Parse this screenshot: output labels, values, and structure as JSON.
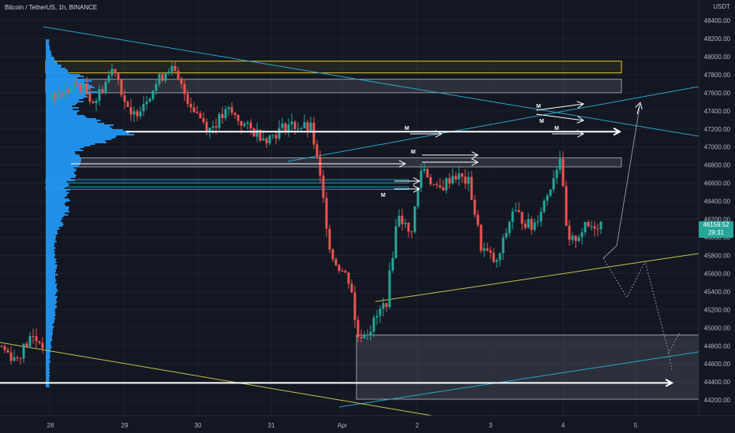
{
  "symbol": {
    "title": "Bitcoin / TetherUS, 1h, BINANCE",
    "currency": "USDT"
  },
  "last_price": {
    "value": "46159.52",
    "countdown": "29:31",
    "color": "#26a69a"
  },
  "colors": {
    "up": "#26a69a",
    "down": "#ef5350",
    "volume_profile": "#2196f3",
    "trend_cyan": "#26a6c9",
    "trend_yellow": "#c8c14a",
    "zone_yellow": "#e6c829",
    "arrow": "#ffffff",
    "projection": "#8a8f98"
  },
  "chart_data": {
    "type": "candlestick",
    "y_axis": {
      "position": "right",
      "range": [
        44100,
        48400
      ],
      "ticks": [
        "48400.00",
        "48200.00",
        "48000.00",
        "47800.00",
        "47600.00",
        "47400.00",
        "47200.00",
        "47000.00",
        "46800.00",
        "46600.00",
        "46400.00",
        "46200.00",
        "46000.00",
        "45800.00",
        "45600.00",
        "45400.00",
        "45200.00",
        "45000.00",
        "44800.00",
        "44600.00",
        "44400.00",
        "44200.00"
      ]
    },
    "x_axis": {
      "labels": [
        "28",
        "29",
        "30",
        "31",
        "Apr",
        "2",
        "3",
        "4",
        "5"
      ]
    },
    "grid": true,
    "zones": [
      {
        "name": "supply-zone-yellow",
        "y_low": 47820,
        "y_high": 47950,
        "style": "yellow"
      },
      {
        "name": "resistance-zone-grey",
        "y_low": 47600,
        "y_high": 47750,
        "style": "grey"
      },
      {
        "name": "support-zone-grey",
        "y_low": 46780,
        "y_high": 46880,
        "style": "grey"
      },
      {
        "name": "demand-zone",
        "y_low": 44210,
        "y_high": 44920,
        "style": "grey"
      }
    ],
    "level_lines": [
      {
        "name": "vpoc-level",
        "y": 47170
      },
      {
        "name": "low-level",
        "y": 44390
      }
    ],
    "annotation_label": "M"
  }
}
